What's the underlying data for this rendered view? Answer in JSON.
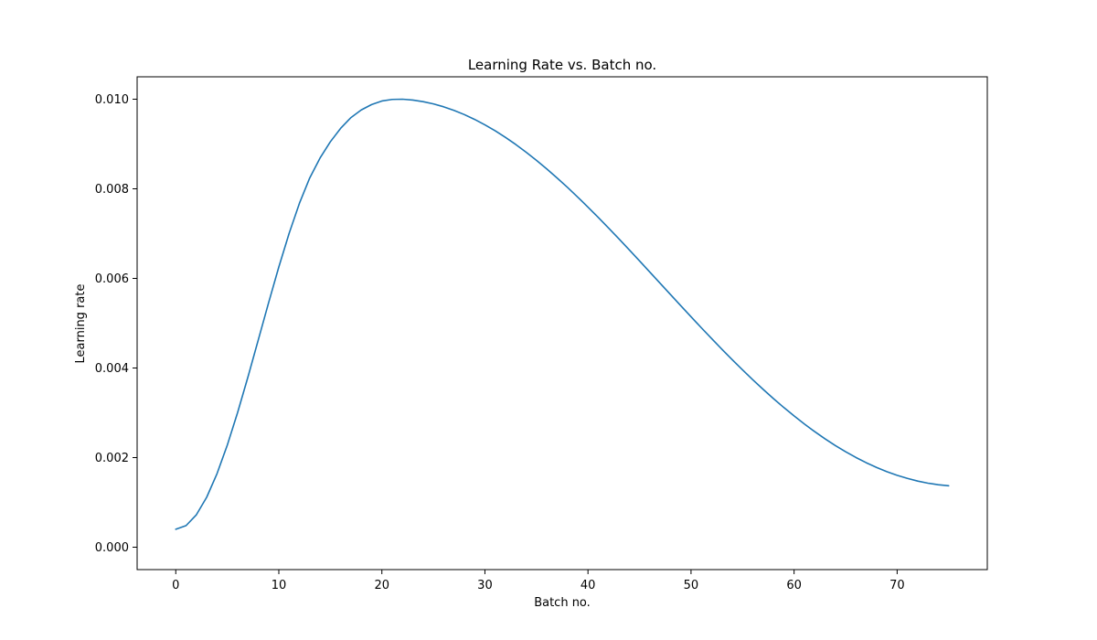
{
  "chart_data": {
    "type": "line",
    "title": "Learning Rate vs. Batch no.",
    "xlabel": "Batch no.",
    "ylabel": "Learning rate",
    "xlim": [
      -3.75,
      78.75
    ],
    "ylim": [
      -0.0005,
      0.0105
    ],
    "xticks": [
      0,
      10,
      20,
      30,
      40,
      50,
      60,
      70
    ],
    "yticks": [
      0.0,
      0.002,
      0.004,
      0.006,
      0.008,
      0.01
    ],
    "ytick_labels": [
      "0.000",
      "0.002",
      "0.004",
      "0.006",
      "0.008",
      "0.010"
    ],
    "grid": false,
    "legend": "none",
    "line_color": "#1f77b4",
    "series": [
      {
        "x": [
          0,
          1,
          2,
          3,
          4,
          5,
          6,
          7,
          8,
          9,
          10,
          11,
          12,
          13,
          14,
          15,
          16,
          17,
          18,
          19,
          20,
          21,
          22,
          23,
          24,
          25,
          26,
          27,
          28,
          29,
          30,
          31,
          32,
          33,
          34,
          35,
          36,
          37,
          38,
          39,
          40,
          41,
          42,
          43,
          44,
          45,
          46,
          47,
          48,
          49,
          50,
          51,
          52,
          53,
          54,
          55,
          56,
          57,
          58,
          59,
          60,
          61,
          62,
          63,
          64,
          65,
          66,
          67,
          68,
          69,
          70,
          71,
          72,
          73,
          74,
          75
        ],
        "y": [
          0.0004,
          0.000482,
          0.000724,
          0.001115,
          0.00164,
          0.002278,
          0.003005,
          0.003796,
          0.004621,
          0.00545,
          0.006255,
          0.007006,
          0.007677,
          0.008243,
          0.008687,
          0.00905,
          0.00935,
          0.00959,
          0.00976,
          0.00988,
          0.00996,
          0.009995,
          0.01,
          0.009981,
          0.009945,
          0.009895,
          0.00983,
          0.009751,
          0.009657,
          0.009549,
          0.009428,
          0.009294,
          0.009147,
          0.008988,
          0.008817,
          0.008636,
          0.008444,
          0.008243,
          0.008034,
          0.007816,
          0.007591,
          0.00736,
          0.007124,
          0.006883,
          0.006639,
          0.006391,
          0.006142,
          0.005892,
          0.005641,
          0.005392,
          0.005144,
          0.004898,
          0.004656,
          0.004418,
          0.004185,
          0.003958,
          0.003737,
          0.003523,
          0.003317,
          0.003119,
          0.00293,
          0.00275,
          0.00258,
          0.00242,
          0.00227,
          0.002131,
          0.002003,
          0.001886,
          0.001781,
          0.001687,
          0.001605,
          0.001535,
          0.001476,
          0.001429,
          0.001394,
          0.001371
        ]
      }
    ]
  }
}
